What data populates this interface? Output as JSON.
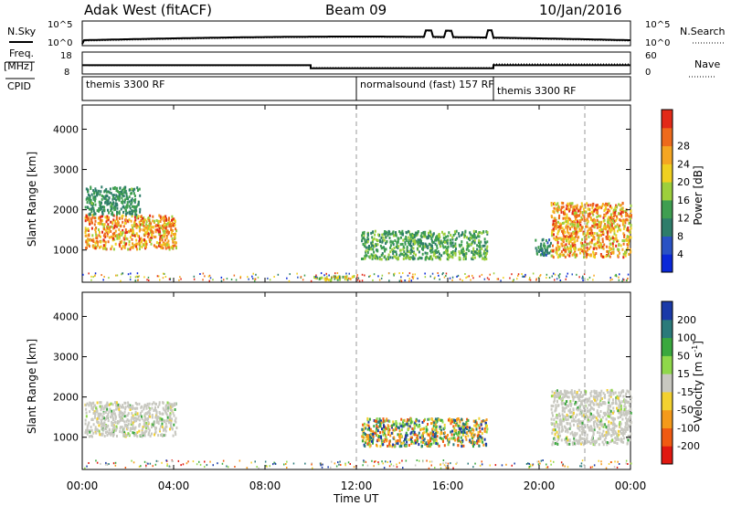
{
  "header": {
    "station": "Adak West (fitACF)",
    "beam": "Beam 09",
    "date": "10/Jan/2016"
  },
  "left_labels": {
    "nsky": "N.Sky",
    "freq": "Freq.",
    "freq_unit": "[MHz]",
    "cpid": "CPID"
  },
  "right_labels": {
    "nsearch": "N.Search",
    "nave": "Nave"
  },
  "noise_panel": {
    "yticks_left": [
      "10^5",
      "10^0"
    ],
    "yticks_right": [
      "10^5",
      "10^0"
    ]
  },
  "freq_panel": {
    "yticks_left": [
      "18",
      "8"
    ],
    "yticks_right": [
      "60",
      "0"
    ],
    "freq_steps": [
      {
        "start": 0,
        "end": 10,
        "value": 12.0
      },
      {
        "start": 10,
        "end": 18,
        "value": 10.6
      },
      {
        "start": 18,
        "end": 24,
        "value": 12.0
      }
    ]
  },
  "cpid_segments": [
    {
      "start": 0,
      "label": "themis 3300 RF"
    },
    {
      "start": 12,
      "label": "normalsound (fast) 157 RF"
    },
    {
      "start": 18,
      "label": "themis 3300 RF"
    }
  ],
  "range_axis": {
    "label": "Slant Range [km]",
    "ticks": [
      1000,
      2000,
      3000,
      4000
    ],
    "ylim": [
      200,
      4600
    ]
  },
  "time_axis": {
    "label": "Time UT",
    "ticks": [
      "00:00",
      "04:00",
      "08:00",
      "12:00",
      "16:00",
      "20:00",
      "00:00"
    ],
    "xlim": [
      0,
      24
    ]
  },
  "dashed_lines_hours": [
    12,
    22
  ],
  "power_colorbar": {
    "label": "Power [dB]",
    "ticks": [
      "4",
      "8",
      "12",
      "16",
      "20",
      "24",
      "28"
    ],
    "colors": [
      "#0a28d8",
      "#2a52c4",
      "#2e7d6a",
      "#3e9e50",
      "#9dcf3c",
      "#f0d020",
      "#f5a622",
      "#ee6a1c",
      "#e22a18"
    ]
  },
  "velocity_colorbar": {
    "label": "Velocity [m s",
    "label_sup": "-1",
    "label_end": "]",
    "ticks": [
      "-200",
      "-100",
      "-50",
      "-15",
      "15",
      "50",
      "100",
      "200"
    ],
    "colors": [
      "#e01810",
      "#f05a12",
      "#f59a1a",
      "#f3d130",
      "#c8c8c0",
      "#8fd84a",
      "#3aa83e",
      "#2a7a7a",
      "#1a3aa8"
    ]
  },
  "chart_data": {
    "type": "heatmap",
    "title": "Adak West (fitACF) Beam 09 10/Jan/2016",
    "xlabel": "Time UT",
    "ylabel": "Slant Range [km]",
    "xlim": [
      0,
      24
    ],
    "ylim": [
      200,
      4600
    ],
    "power_echo_regions": [
      {
        "t0": 0.1,
        "t1": 4.1,
        "r0": 1050,
        "r1": 1900,
        "peak_power_db": 28
      },
      {
        "t0": 0.1,
        "t1": 2.5,
        "r0": 1900,
        "r1": 2600,
        "peak_power_db": 12
      },
      {
        "t0": 10.0,
        "t1": 12.0,
        "r0": 280,
        "r1": 380,
        "peak_power_db": 20
      },
      {
        "t0": 12.2,
        "t1": 17.7,
        "r0": 800,
        "r1": 1500,
        "peak_power_db": 14
      },
      {
        "t0": 19.8,
        "t1": 20.5,
        "r0": 900,
        "r1": 1300,
        "peak_power_db": 10
      },
      {
        "t0": 20.5,
        "t1": 24.0,
        "r0": 850,
        "r1": 2200,
        "peak_power_db": 28
      }
    ],
    "velocity_regions": [
      {
        "t0": 0.1,
        "t1": 4.1,
        "r0": 1050,
        "r1": 1900,
        "velocity": 0
      },
      {
        "t0": 12.2,
        "t1": 17.7,
        "r0": 800,
        "r1": 1500,
        "velocity": -40
      },
      {
        "t0": 20.5,
        "t1": 24.0,
        "r0": 850,
        "r1": 2200,
        "velocity": 0
      }
    ]
  }
}
